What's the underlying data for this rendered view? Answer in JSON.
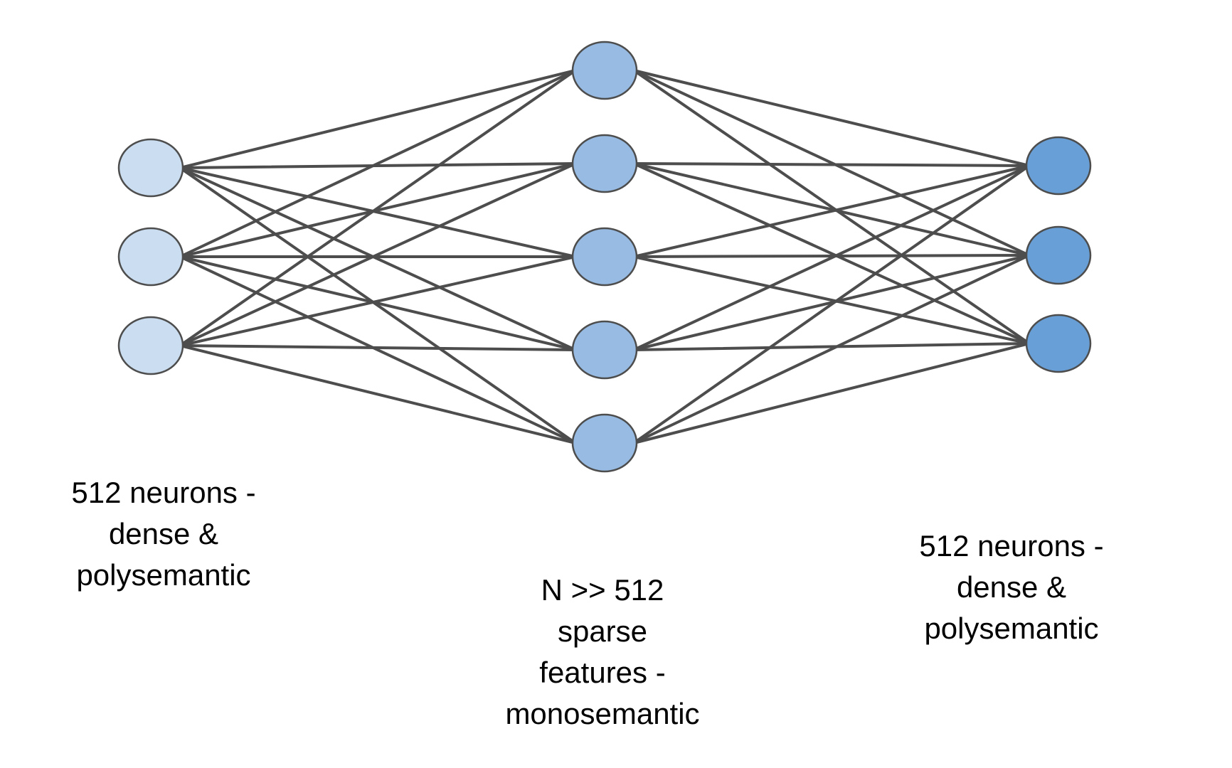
{
  "layers": [
    {
      "id": "input",
      "node_count": 3,
      "fill": "#cbddf0",
      "caption_lines": [
        "512 neurons -",
        "dense &",
        "polysemantic"
      ]
    },
    {
      "id": "hidden",
      "node_count": 5,
      "fill": "#97bbe2",
      "caption_lines": [
        "N >> 512",
        "sparse",
        "features -",
        "monosemantic"
      ]
    },
    {
      "id": "output",
      "node_count": 3,
      "fill": "#689fd7",
      "caption_lines": [
        "512 neurons -",
        "dense &",
        "polysemantic"
      ]
    }
  ],
  "connections": "fully-connected between adjacent layers",
  "colors": {
    "edge": "#4d4d4d",
    "node_stroke": "#4d4d4d",
    "text": "#000000",
    "background": "#ffffff"
  }
}
